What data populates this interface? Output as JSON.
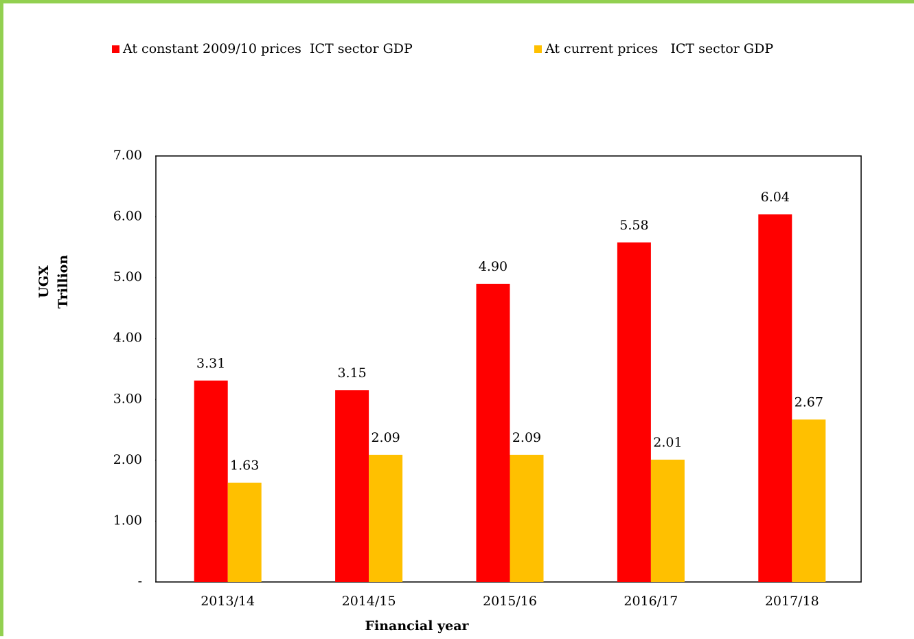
{
  "chart_data": {
    "type": "bar",
    "categories": [
      "2013/14",
      "2014/15",
      "2015/16",
      "2016/17",
      "2017/18"
    ],
    "series": [
      {
        "name": "At constant 2009/10 prices  ICT sector GDP",
        "color": "#ff0000",
        "values": [
          3.31,
          3.15,
          4.9,
          5.58,
          6.04
        ],
        "value_labels": [
          "3.31",
          "3.15",
          "4.90",
          "5.58",
          "6.04"
        ]
      },
      {
        "name": "At current prices   ICT sector GDP",
        "color": "#ffc000",
        "values": [
          1.63,
          2.09,
          2.09,
          2.01,
          2.67
        ],
        "value_labels": [
          "1.63",
          "2.09",
          "2.09",
          "2.01",
          "2.67"
        ]
      }
    ],
    "ylim": [
      0,
      7
    ],
    "yticks": [
      {
        "value": 0,
        "label": "-"
      },
      {
        "value": 1,
        "label": "1.00"
      },
      {
        "value": 2,
        "label": "2.00"
      },
      {
        "value": 3,
        "label": "3.00"
      },
      {
        "value": 4,
        "label": "4.00"
      },
      {
        "value": 5,
        "label": "5.00"
      },
      {
        "value": 6,
        "label": "6.00"
      },
      {
        "value": 7,
        "label": "7.00"
      }
    ],
    "ylabel": [
      "UGX",
      "Trillion"
    ],
    "xlabel": "Financial year",
    "legend": "top",
    "grid": false
  }
}
